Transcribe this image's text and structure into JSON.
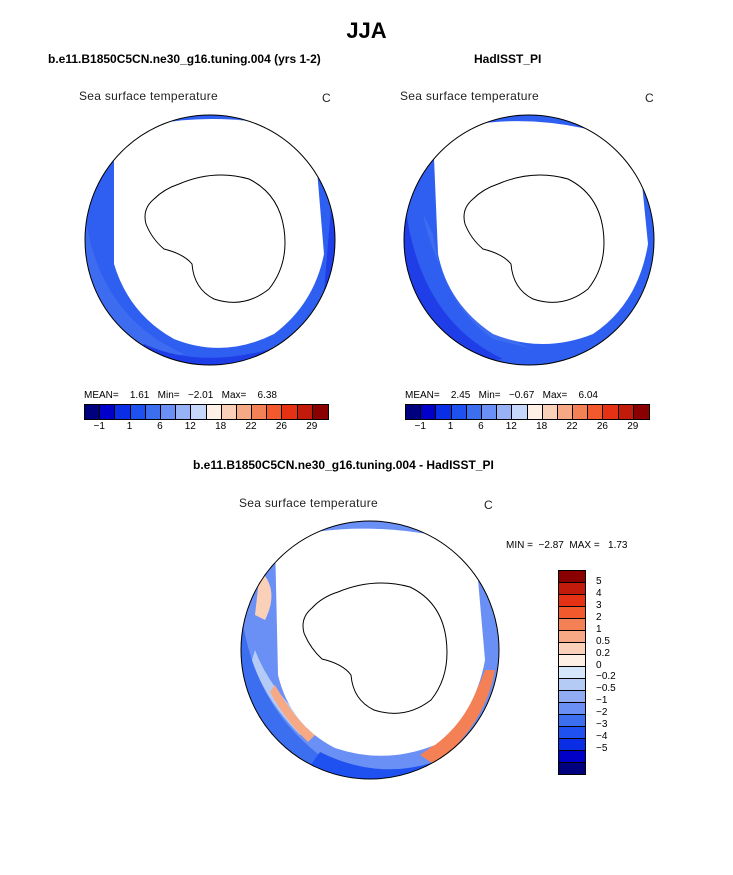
{
  "season": "JJA",
  "panels": [
    {
      "id": "model",
      "title": "b.e11.B1850C5CN.ne30_g16.tuning.004 (yrs 1-2)",
      "variable": "Sea surface temperature",
      "units": "C",
      "stats": {
        "mean_label": "MEAN=",
        "mean": "1.61",
        "min_label": "Min=",
        "min": "−2.01",
        "max_label": "Max=",
        "max": "6.38"
      }
    },
    {
      "id": "obs",
      "title": "HadISST_PI",
      "variable": "Sea surface temperature",
      "units": "C",
      "stats": {
        "mean_label": "MEAN=",
        "mean": "2.45",
        "min_label": "Min=",
        "min": "−0.67",
        "max_label": "Max=",
        "max": "6.04"
      }
    }
  ],
  "colorbar": {
    "colors": [
      "#00007f",
      "#0000c8",
      "#0a2ee6",
      "#1f50f0",
      "#3c6ef0",
      "#6a8ff5",
      "#97b3f5",
      "#c5d7fb",
      "#fff0e6",
      "#fbd0b8",
      "#f7a884",
      "#f48055",
      "#f25a2e",
      "#e63214",
      "#c21b0c",
      "#8a0000"
    ],
    "tick_labels": [
      "−1",
      "1",
      "6",
      "12",
      "18",
      "22",
      "26",
      "29"
    ]
  },
  "difference": {
    "title": "b.e11.B1850C5CN.ne30_g16.tuning.004 - HadISST_PI",
    "variable": "Sea surface temperature",
    "units": "C",
    "min_label": "MIN =",
    "min": "−2.87",
    "max_label": "MAX =",
    "max": "1.73",
    "colorbar": {
      "colors": [
        "#8a0000",
        "#c21b0c",
        "#e63214",
        "#f25a2e",
        "#f48055",
        "#f7a884",
        "#fbd0b8",
        "#fff0e6",
        "#d6e6fb",
        "#b4cbf5",
        "#90abf2",
        "#6a8ff5",
        "#3c6ef0",
        "#1f50f0",
        "#0a2ee6",
        "#0000c8",
        "#00007f"
      ],
      "labels": [
        "5",
        "4",
        "3",
        "2",
        "1",
        "0.5",
        "0.2",
        "0",
        "−0.2",
        "−0.5",
        "−1",
        "−2",
        "−3",
        "−4",
        "−5"
      ]
    }
  }
}
